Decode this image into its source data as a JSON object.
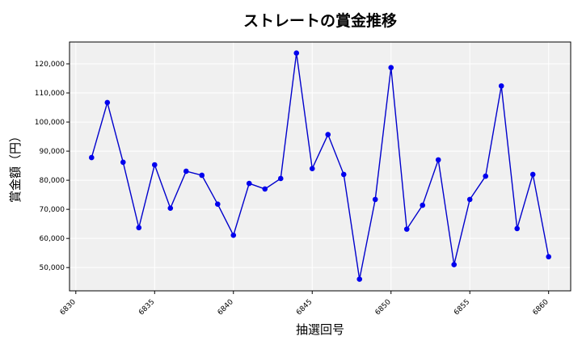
{
  "chart_data": {
    "type": "line",
    "title": "ストレートの賞金推移",
    "xlabel": "抽選回号",
    "ylabel": "賞金額（円）",
    "xlim": [
      6829.6,
      6861.4
    ],
    "ylim": [
      42000,
      127500
    ],
    "x_ticks": [
      6830,
      6835,
      6840,
      6845,
      6850,
      6855,
      6860
    ],
    "y_ticks": [
      50000,
      60000,
      70000,
      80000,
      90000,
      100000,
      110000,
      120000
    ],
    "x_tick_labels": [
      "6830",
      "6835",
      "6840",
      "6845",
      "6850",
      "6855",
      "6860"
    ],
    "y_tick_labels": [
      "50,000",
      "60,000",
      "70,000",
      "80,000",
      "90,000",
      "100,000",
      "110,000",
      "120,000"
    ],
    "grid": true,
    "legend": "none",
    "colors": {
      "line": "#0000cc",
      "marker": "#0000ee",
      "plot_bg": "#f0f0f0",
      "grid": "#ffffff"
    },
    "series": [
      {
        "x": [
          6831,
          6832,
          6833,
          6834,
          6835,
          6836,
          6837,
          6838,
          6839,
          6840,
          6841,
          6842,
          6843,
          6844,
          6845,
          6846,
          6847,
          6848,
          6849,
          6850,
          6851,
          6852,
          6853,
          6854,
          6855,
          6856,
          6857,
          6858,
          6859,
          6860
        ],
        "values": [
          87800,
          106700,
          86200,
          63700,
          85300,
          70400,
          83100,
          81700,
          71800,
          61100,
          78900,
          77000,
          80600,
          123700,
          84000,
          95700,
          82000,
          46000,
          73400,
          118700,
          63200,
          71400,
          87000,
          51000,
          73400,
          81400,
          112400,
          63400,
          82000,
          53700
        ]
      }
    ]
  }
}
